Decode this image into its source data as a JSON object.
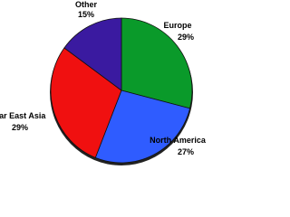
{
  "chart_data": {
    "type": "pie",
    "categories": [
      "Europe",
      "North America",
      "Far East Asia",
      "Other"
    ],
    "values": [
      29,
      27,
      29,
      15
    ],
    "value_labels": [
      "29%",
      "27%",
      "29%",
      "15%"
    ],
    "colors": [
      "#0a9a2a",
      "#2f5cff",
      "#f01010",
      "#3a1aa0"
    ]
  }
}
